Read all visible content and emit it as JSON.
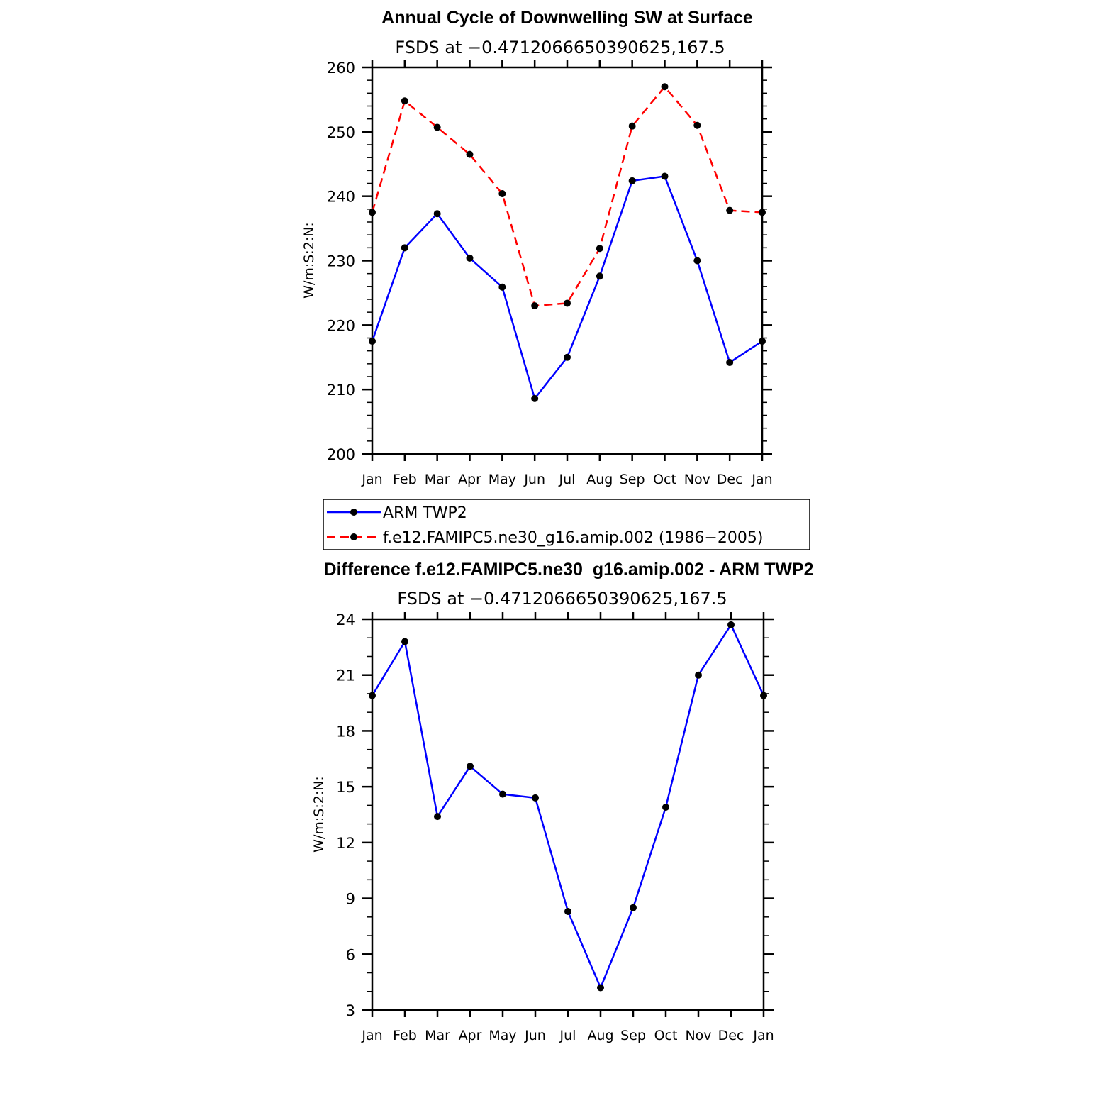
{
  "chart_data": [
    {
      "type": "line",
      "title": "Annual Cycle of Downwelling SW at Surface",
      "subtitle": "FSDS at −0.4712066650390625,167.5",
      "ylabel": "W/m:S:2:N:",
      "xlabel": "",
      "categories": [
        "Jan",
        "Feb",
        "Mar",
        "Apr",
        "May",
        "Jun",
        "Jul",
        "Aug",
        "Sep",
        "Oct",
        "Nov",
        "Dec",
        "Jan"
      ],
      "ylim": [
        200,
        260
      ],
      "yticks": [
        "200",
        "210",
        "220",
        "230",
        "240",
        "250",
        "260"
      ],
      "series": [
        {
          "name": "ARM TWP2",
          "color": "#0000ff",
          "dash": "solid",
          "values": [
            217.5,
            232.0,
            237.3,
            230.4,
            225.9,
            208.6,
            215.0,
            227.6,
            242.4,
            243.1,
            230.0,
            214.2,
            217.5
          ]
        },
        {
          "name": "f.e12.FAMIPC5.ne30_g16.amip.002 (1986−2005)",
          "color": "#ff0000",
          "dash": "dashed",
          "values": [
            237.5,
            254.8,
            250.7,
            246.5,
            240.4,
            223.0,
            223.4,
            231.9,
            250.9,
            257.0,
            251.0,
            237.8,
            237.5
          ]
        }
      ],
      "legend": "below"
    },
    {
      "type": "line",
      "title": "Difference f.e12.FAMIPC5.ne30_g16.amip.002 - ARM TWP2",
      "subtitle": "FSDS at −0.4712066650390625,167.5",
      "ylabel": "W/m:S:2:N:",
      "xlabel": "",
      "categories": [
        "Jan",
        "Feb",
        "Mar",
        "Apr",
        "May",
        "Jun",
        "Jul",
        "Aug",
        "Sep",
        "Oct",
        "Nov",
        "Dec",
        "Jan"
      ],
      "ylim": [
        3,
        24
      ],
      "yticks": [
        "3",
        "6",
        "9",
        "12",
        "15",
        "18",
        "21",
        "24"
      ],
      "series": [
        {
          "color": "#0000ff",
          "dash": "solid",
          "values": [
            19.9,
            22.8,
            13.4,
            16.1,
            14.6,
            14.4,
            8.3,
            4.2,
            8.5,
            13.9,
            21.0,
            23.7,
            19.9
          ]
        }
      ]
    }
  ]
}
